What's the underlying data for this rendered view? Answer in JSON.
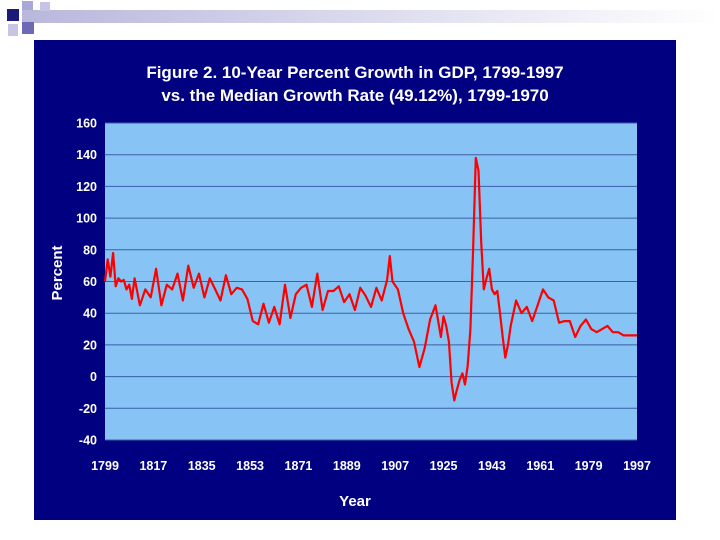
{
  "colors": {
    "panel": "#000080",
    "plot_bg": "#87C4F5",
    "grid": "#3b5fa8",
    "line": "#ff0000",
    "text": "#ffffff",
    "deco_square": "#1c1a78",
    "deco_square_light": "#a9a7d6"
  },
  "chart_data": {
    "type": "line",
    "title": "Figure 2.  10-Year Percent Growth in GDP, 1799-1997",
    "subtitle": "vs. the Median Growth Rate (49.12%), 1799-1970",
    "xlabel": "Year",
    "ylabel": "Percent",
    "xlim": [
      1799,
      1997
    ],
    "ylim": [
      -40,
      160
    ],
    "x_ticks": [
      "1799",
      "1817",
      "1835",
      "1853",
      "1871",
      "1889",
      "1907",
      "1925",
      "1943",
      "1961",
      "1979",
      "1997"
    ],
    "y_ticks": [
      "160",
      "140",
      "120",
      "100",
      "80",
      "60",
      "40",
      "20",
      "0",
      "-20",
      "-40"
    ],
    "grid": true,
    "series": [
      {
        "x": [
          1799,
          1800,
          1801,
          1802,
          1803,
          1804,
          1805,
          1806,
          1807,
          1808,
          1809,
          1810,
          1812,
          1814,
          1816,
          1818,
          1820,
          1822,
          1824,
          1826,
          1828,
          1830,
          1832,
          1834,
          1836,
          1838,
          1840,
          1842,
          1844,
          1846,
          1848,
          1850,
          1852,
          1854,
          1856,
          1858,
          1860,
          1862,
          1864,
          1866,
          1868,
          1870,
          1872,
          1874,
          1876,
          1878,
          1880,
          1882,
          1884,
          1886,
          1888,
          1890,
          1892,
          1894,
          1896,
          1898,
          1900,
          1902,
          1904,
          1905,
          1906,
          1908,
          1910,
          1912,
          1914,
          1915,
          1916,
          1918,
          1920,
          1922,
          1924,
          1925,
          1926,
          1927,
          1928,
          1929,
          1930,
          1931,
          1932,
          1933,
          1934,
          1935,
          1936,
          1937,
          1938,
          1939,
          1940,
          1941,
          1942,
          1943,
          1944,
          1945,
          1946,
          1947,
          1948,
          1949,
          1950,
          1952,
          1954,
          1956,
          1958,
          1960,
          1962,
          1964,
          1966,
          1968,
          1970,
          1972,
          1974,
          1976,
          1978,
          1980,
          1982,
          1984,
          1986,
          1988,
          1990,
          1992,
          1994,
          1996,
          1997
        ],
        "values": [
          60,
          74,
          63,
          78,
          57,
          62,
          60,
          61,
          55,
          58,
          49,
          62,
          45,
          55,
          50,
          68,
          45,
          58,
          55,
          65,
          48,
          70,
          56,
          65,
          50,
          62,
          55,
          48,
          64,
          52,
          56,
          55,
          49,
          35,
          33,
          46,
          34,
          44,
          33,
          58,
          37,
          52,
          56,
          58,
          44,
          65,
          42,
          54,
          54,
          57,
          47,
          52,
          42,
          56,
          51,
          44,
          56,
          48,
          61,
          76,
          60,
          55,
          40,
          30,
          22,
          14,
          6,
          18,
          36,
          45,
          25,
          38,
          32,
          22,
          -4,
          -15,
          -8,
          -2,
          2,
          -5,
          7,
          30,
          80,
          138,
          130,
          85,
          55,
          62,
          68,
          55,
          52,
          54,
          40,
          25,
          12,
          20,
          32,
          48,
          40,
          44,
          35,
          45,
          55,
          50,
          48,
          34,
          35,
          35,
          25,
          32,
          36,
          30,
          28,
          30,
          32,
          28,
          28,
          26,
          26,
          26,
          26
        ]
      }
    ]
  }
}
